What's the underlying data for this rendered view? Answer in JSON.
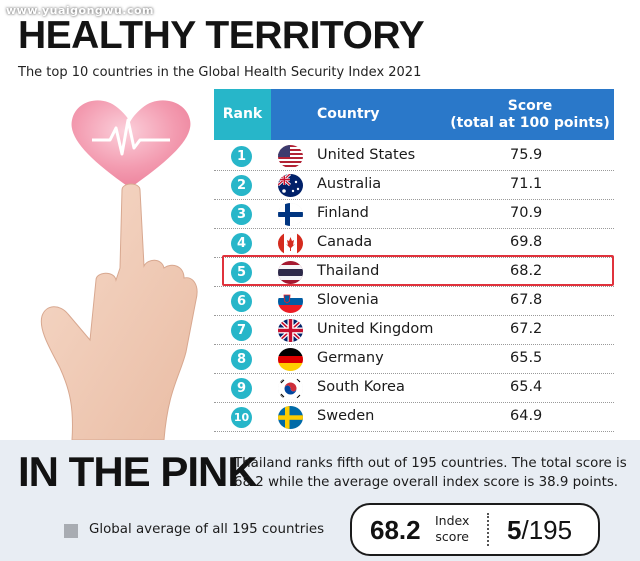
{
  "watermark": "www.yuaigongwu.com",
  "title": "HEALTHY TERRITORY",
  "subtitle": "The top 10 countries in the Global Health Security Index 2021",
  "table": {
    "headers": {
      "rank": "Rank",
      "country": "Country",
      "score_line1": "Score",
      "score_line2": "(total at 100 points)"
    },
    "rows": [
      {
        "rank": "1",
        "country": "United States",
        "score": "75.9",
        "flag": "us-flag"
      },
      {
        "rank": "2",
        "country": "Australia",
        "score": "71.1",
        "flag": "au-flag"
      },
      {
        "rank": "3",
        "country": "Finland",
        "score": "70.9",
        "flag": "fi-flag"
      },
      {
        "rank": "4",
        "country": "Canada",
        "score": "69.8",
        "flag": "ca-flag"
      },
      {
        "rank": "5",
        "country": "Thailand",
        "score": "68.2",
        "flag": "th-flag",
        "highlighted": true
      },
      {
        "rank": "6",
        "country": "Slovenia",
        "score": "67.8",
        "flag": "si-flag"
      },
      {
        "rank": "7",
        "country": "United Kingdom",
        "score": "67.2",
        "flag": "gb-flag"
      },
      {
        "rank": "8",
        "country": "Germany",
        "score": "65.5",
        "flag": "de-flag"
      },
      {
        "rank": "9",
        "country": "South Korea",
        "score": "65.4",
        "flag": "kr-flag"
      },
      {
        "rank": "10",
        "country": "Sweden",
        "score": "64.9",
        "flag": "se-flag"
      }
    ]
  },
  "footer": {
    "headline": "IN THE PINK",
    "description": "Thailand ranks fifth out of 195 countries. The total score is 68.2 while the average overall index score is 38.9 points.",
    "legend_label": "Global average of all 195 countries",
    "index_score": "68.2",
    "index_label_line1": "Index",
    "index_label_line2": "score",
    "rank_value": "5",
    "rank_total": "/195"
  },
  "colors": {
    "rank_header": "#27b6c9",
    "header": "#2a78c9",
    "highlight_border": "#e0323c",
    "footer_bg": "#e8edf3",
    "heart": "#f08aa0"
  },
  "icons": {
    "illustration": "hand-heart-icon",
    "legend": "gray-square-icon"
  }
}
